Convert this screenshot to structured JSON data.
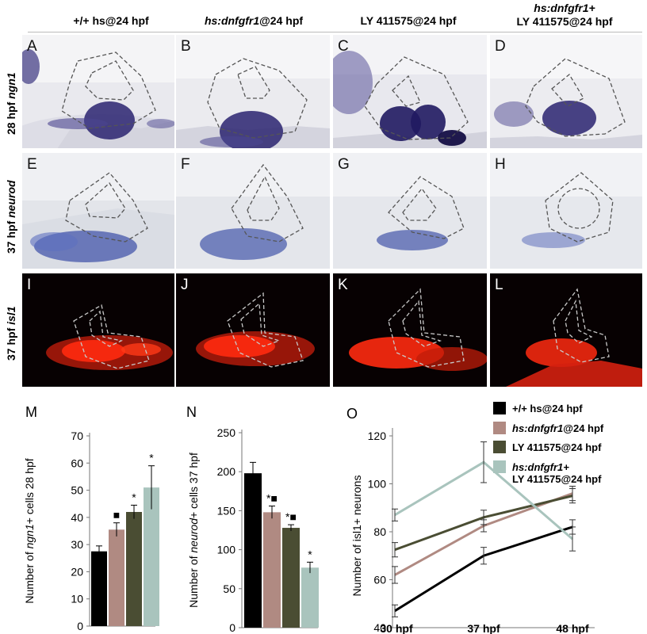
{
  "column_headers": [
    {
      "pre": "",
      "italic": "",
      "post": "+/+ hs@24 hpf"
    },
    {
      "pre": "",
      "italic": "hs:dnfgfr1",
      "post": "@24 hpf"
    },
    {
      "pre": "",
      "italic": "",
      "post": "LY 411575@24 hpf"
    },
    {
      "pre": "",
      "italic": "hs:dnfgfr1+",
      "post": "LY 411575@24 hpf"
    }
  ],
  "row_labels": [
    {
      "plain": "28 hpf ",
      "italic": "ngn1"
    },
    {
      "plain": "37 hpf ",
      "italic": "neurod"
    },
    {
      "plain": "37 hpf ",
      "italic": "isl1"
    }
  ],
  "panel_letters": [
    "A",
    "B",
    "C",
    "D",
    "E",
    "F",
    "G",
    "H",
    "I",
    "J",
    "K",
    "L"
  ],
  "colors": {
    "wt": "#000000",
    "dnfgfr1": "#b08a82",
    "ly": "#4a4d33",
    "combo": "#a9c4bd",
    "ish_stain": "#2a2370",
    "ish_stain2": "#4d5fae",
    "fluor": "#ff2a10"
  },
  "chart_data": [
    {
      "type": "bar",
      "panel_letter": "M",
      "ylabel_pre": "Number of ",
      "ylabel_italic": "ngn1",
      "ylabel_post": "+ cells  28 hpf",
      "ylim": [
        0,
        70
      ],
      "yticks": [
        0,
        10,
        20,
        30,
        40,
        50,
        60,
        70
      ],
      "values": [
        27.5,
        35.5,
        42,
        51
      ],
      "errors": [
        2,
        2.5,
        2.5,
        8
      ],
      "annotations": [
        "",
        "■",
        "*",
        "*"
      ]
    },
    {
      "type": "bar",
      "panel_letter": "N",
      "ylabel_pre": "Number of ",
      "ylabel_italic": "neurod",
      "ylabel_post": "+ cells 37 hpf",
      "ylim": [
        0,
        250
      ],
      "yticks": [
        0,
        50,
        100,
        150,
        200,
        250
      ],
      "values": [
        198,
        148,
        128,
        77
      ],
      "errors": [
        14,
        8,
        4,
        7
      ],
      "annotations": [
        "",
        "*■",
        "*■",
        "*"
      ]
    },
    {
      "type": "line",
      "panel_letter": "O",
      "ylabel": "Number of isl1+ neurons",
      "categories": [
        "30 hpf",
        "37 hpf",
        "48 hpf"
      ],
      "ylim": [
        40,
        120
      ],
      "yticks": [
        40,
        60,
        80,
        100,
        120
      ],
      "series": [
        {
          "name_pre": "",
          "name_italic": "",
          "name_post": "+/+ hs@24 hpf",
          "values": [
            47,
            70,
            82
          ],
          "errors": [
            2.5,
            3.5,
            3
          ]
        },
        {
          "name_pre": "",
          "name_italic": "hs:dnfgfr1",
          "name_post": "@24 hpf",
          "values": [
            62,
            82.5,
            96
          ],
          "errors": [
            3.5,
            2.5,
            3
          ]
        },
        {
          "name_pre": "",
          "name_italic": "",
          "name_post": "LY 411575@24 hpf",
          "values": [
            72.5,
            86,
            95
          ],
          "errors": [
            3,
            3,
            3
          ]
        },
        {
          "name_pre": "",
          "name_italic": "hs:dnfgfr1+",
          "name_post": "LY 411575@24 hpf",
          "values": [
            87,
            109,
            77
          ],
          "errors": [
            2.5,
            8.5,
            5
          ]
        }
      ],
      "legend": "top-right"
    }
  ]
}
